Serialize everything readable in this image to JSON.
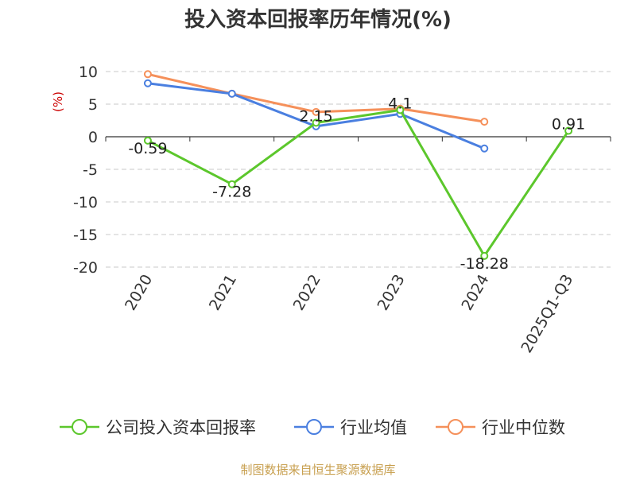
{
  "chart_data": {
    "type": "line",
    "title": "投入资本回报率历年情况(%)",
    "unit_label": "(%)",
    "categories": [
      "2020",
      "2021",
      "2022",
      "2023",
      "2024",
      "2025Q1-Q3"
    ],
    "ylim": [
      -20,
      10
    ],
    "yticks": [
      "10",
      "5",
      "0",
      "-5",
      "-10",
      "-15",
      "-20"
    ],
    "grid": true,
    "legend_position": "bottom",
    "series": [
      {
        "name": "公司投入资本回报率",
        "color": "#5cc72c",
        "values": [
          -0.59,
          -7.28,
          2.15,
          4.1,
          -18.28,
          0.91
        ],
        "labels": [
          "-0.59",
          "-7.28",
          "2.15",
          "4.1",
          "-18.28",
          "0.91"
        ]
      },
      {
        "name": "行业均值",
        "color": "#4a7fe0",
        "values": [
          8.2,
          6.6,
          1.6,
          3.5,
          -1.8,
          null
        ]
      },
      {
        "name": "行业中位数",
        "color": "#f5905a",
        "values": [
          9.6,
          6.6,
          3.8,
          4.3,
          2.3,
          null
        ]
      }
    ],
    "source": "制图数据来自恒生聚源数据库"
  }
}
